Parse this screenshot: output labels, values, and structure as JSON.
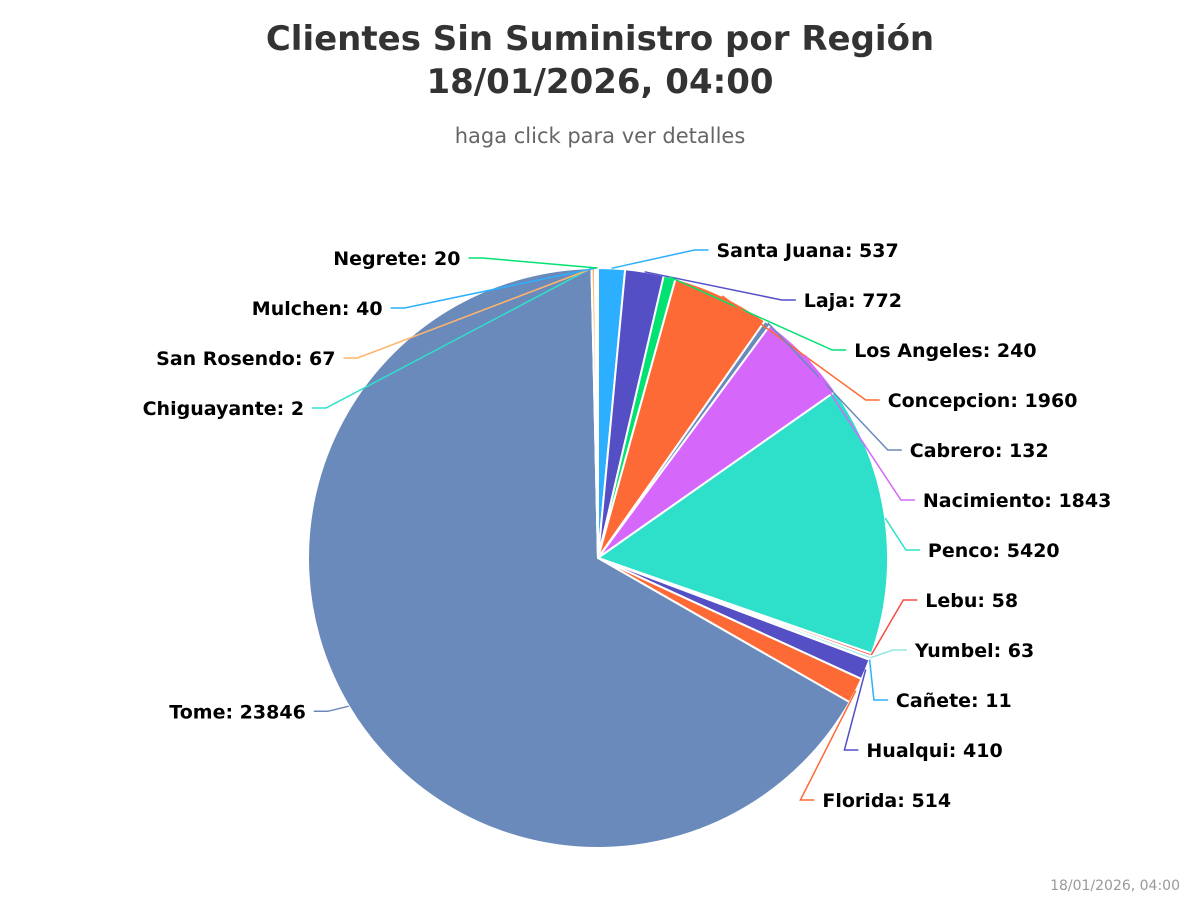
{
  "title_line1": "Clientes Sin Suministro por Región",
  "title_line2": "18/01/2026, 04:00",
  "subtitle": "haga click para ver detalles",
  "credit": "18/01/2026, 04:00",
  "chart_data": {
    "type": "pie",
    "title": "Clientes Sin Suministro por Región 18/01/2026, 04:00",
    "subtitle": "haga click para ver detalles",
    "start_angle_deg": 0,
    "direction": "clockwise",
    "legend": "none",
    "data_labels": "outside-with-connectors",
    "slices": [
      {
        "name": "Santa Juana",
        "value": 537,
        "color": "#2caffe"
      },
      {
        "name": "Laja",
        "value": 772,
        "color": "#544fc5"
      },
      {
        "name": "Los Angeles",
        "value": 240,
        "color": "#00e272"
      },
      {
        "name": "Concepcion",
        "value": 1960,
        "color": "#fe6a35"
      },
      {
        "name": "Cabrero",
        "value": 132,
        "color": "#6b8abc"
      },
      {
        "name": "Nacimiento",
        "value": 1843,
        "color": "#d568fb"
      },
      {
        "name": "Penco",
        "value": 5420,
        "color": "#2ee0ca"
      },
      {
        "name": "Lebu",
        "value": 58,
        "color": "#fa4b42"
      },
      {
        "name": "Yumbel",
        "value": 63,
        "color": "#91e8e1"
      },
      {
        "name": "Cañete",
        "value": 11,
        "color": "#2caffe"
      },
      {
        "name": "Hualqui",
        "value": 410,
        "color": "#544fc5"
      },
      {
        "name": "Florida",
        "value": 514,
        "color": "#fe6a35"
      },
      {
        "name": "Tome",
        "value": 23846,
        "color": "#6b8abc"
      },
      {
        "name": "Chiguayante",
        "value": 2,
        "color": "#2ee0ca"
      },
      {
        "name": "San Rosendo",
        "value": 67,
        "color": "#feb56a"
      },
      {
        "name": "Mulchen",
        "value": 40,
        "color": "#2caffe"
      },
      {
        "name": "Negrete",
        "value": 20,
        "color": "#00e272"
      }
    ]
  }
}
